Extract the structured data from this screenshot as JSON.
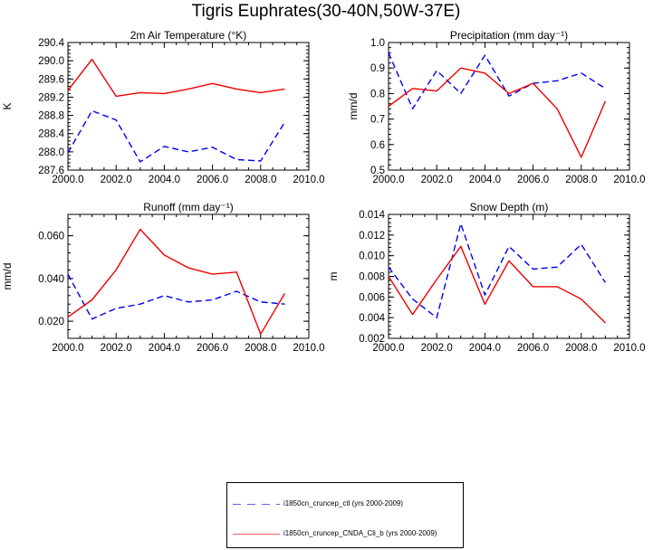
{
  "figure": {
    "title": "Tigris Euphrates(30-40N,50W-37E)"
  },
  "legend": {
    "entries": [
      {
        "label": "i1850cn_cruncep_ctl (yrs 2000-2009)",
        "color": "#0000ee",
        "dash": "dashed"
      },
      {
        "label": "i1850cn_cruncep_CNDA_Cli_b (yrs 2000-2009)",
        "color": "#ee0000",
        "dash": "solid"
      }
    ]
  },
  "chart_data": [
    {
      "type": "line",
      "title": "2m Air Temperature (°K)",
      "ylabel": "K",
      "xlabel": "",
      "xlim": [
        2000,
        2010
      ],
      "ylim": [
        287.6,
        290.4
      ],
      "xticks": [
        "2000.0",
        "2002.0",
        "2004.0",
        "2006.0",
        "2008.0",
        "2010.0"
      ],
      "yticks": [
        "287.6",
        "288.0",
        "288.4",
        "288.8",
        "289.2",
        "289.6",
        "290.0",
        "290.4"
      ],
      "x": [
        2000,
        2001,
        2002,
        2003,
        2004,
        2005,
        2006,
        2007,
        2008,
        2009
      ],
      "series": [
        {
          "name": "i1850cn_cruncep_ctl (yrs 2000-2009)",
          "color": "#0000ee",
          "dash": "dashed",
          "values": [
            287.98,
            288.9,
            288.7,
            287.78,
            288.12,
            288.0,
            288.1,
            287.83,
            287.8,
            288.65
          ]
        },
        {
          "name": "i1850cn_cruncep_CNDA_Cli_b (yrs 2000-2009)",
          "color": "#ee0000",
          "dash": "solid",
          "values": [
            289.35,
            290.03,
            289.22,
            289.3,
            289.28,
            289.38,
            289.5,
            289.38,
            289.3,
            289.38
          ]
        }
      ]
    },
    {
      "type": "line",
      "title": "Precipitation (mm day⁻¹)",
      "ylabel": "mm/d",
      "xlabel": "",
      "xlim": [
        2000,
        2010
      ],
      "ylim": [
        0.5,
        1.0
      ],
      "xticks": [
        "2000.0",
        "2002.0",
        "2004.0",
        "2006.0",
        "2008.0",
        "2010.0"
      ],
      "yticks": [
        "0.5",
        "0.6",
        "0.7",
        "0.8",
        "0.9",
        "1.0"
      ],
      "x": [
        2000,
        2001,
        2002,
        2003,
        2004,
        2005,
        2006,
        2007,
        2008,
        2009
      ],
      "series": [
        {
          "name": "i1850cn_cruncep_ctl (yrs 2000-2009)",
          "color": "#0000ee",
          "dash": "dashed",
          "values": [
            0.96,
            0.74,
            0.89,
            0.8,
            0.95,
            0.79,
            0.84,
            0.85,
            0.88,
            0.82
          ]
        },
        {
          "name": "i1850cn_cruncep_CNDA_Cli_b (yrs 2000-2009)",
          "color": "#ee0000",
          "dash": "solid",
          "values": [
            0.75,
            0.82,
            0.81,
            0.9,
            0.88,
            0.8,
            0.84,
            0.74,
            0.55,
            0.77
          ]
        }
      ]
    },
    {
      "type": "line",
      "title": "Runoff (mm day⁻¹)",
      "ylabel": "mm/d",
      "xlabel": "",
      "xlim": [
        2000,
        2010
      ],
      "ylim": [
        0.012,
        0.07
      ],
      "xticks": [
        "2000.0",
        "2002.0",
        "2004.0",
        "2006.0",
        "2008.0",
        "2010.0"
      ],
      "yticks": [
        "0.020",
        "0.040",
        "0.060"
      ],
      "x": [
        2000,
        2001,
        2002,
        2003,
        2004,
        2005,
        2006,
        2007,
        2008,
        2009
      ],
      "series": [
        {
          "name": "i1850cn_cruncep_ctl (yrs 2000-2009)",
          "color": "#0000ee",
          "dash": "dashed",
          "values": [
            0.042,
            0.021,
            0.026,
            0.028,
            0.032,
            0.029,
            0.03,
            0.034,
            0.029,
            0.028
          ]
        },
        {
          "name": "i1850cn_cruncep_CNDA_Cli_b (yrs 2000-2009)",
          "color": "#ee0000",
          "dash": "solid",
          "values": [
            0.022,
            0.03,
            0.044,
            0.063,
            0.051,
            0.045,
            0.042,
            0.043,
            0.014,
            0.033
          ]
        }
      ]
    },
    {
      "type": "line",
      "title": "Snow Depth (m)",
      "ylabel": "m",
      "xlabel": "",
      "xlim": [
        2000,
        2010
      ],
      "ylim": [
        0.002,
        0.014
      ],
      "xticks": [
        "2000.0",
        "2002.0",
        "2004.0",
        "2006.0",
        "2008.0",
        "2010.0"
      ],
      "yticks": [
        "0.002",
        "0.004",
        "0.006",
        "0.008",
        "0.010",
        "0.012",
        "0.014"
      ],
      "x": [
        2000,
        2001,
        2002,
        2003,
        2004,
        2005,
        2006,
        2007,
        2008,
        2009
      ],
      "series": [
        {
          "name": "i1850cn_cruncep_ctl (yrs 2000-2009)",
          "color": "#0000ee",
          "dash": "dashed",
          "values": [
            0.0089,
            0.0058,
            0.004,
            0.0131,
            0.0062,
            0.0109,
            0.0087,
            0.0089,
            0.0111,
            0.0074
          ]
        },
        {
          "name": "i1850cn_cruncep_CNDA_Cli_b (yrs 2000-2009)",
          "color": "#ee0000",
          "dash": "solid",
          "values": [
            0.008,
            0.0043,
            0.0077,
            0.0109,
            0.0053,
            0.0095,
            0.007,
            0.007,
            0.0058,
            0.0035
          ]
        }
      ]
    }
  ]
}
